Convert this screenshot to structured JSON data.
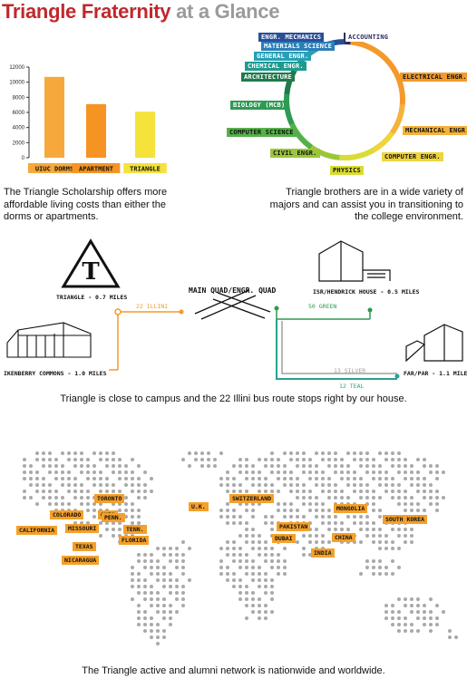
{
  "title": {
    "part1": "Triangle Fraternity",
    "part2": "at a Glance"
  },
  "chart_data": {
    "type": "bar",
    "categories": [
      "UIUC DORMS",
      "APARTMENT",
      "TRIANGLE"
    ],
    "values": [
      10700,
      7100,
      6100
    ],
    "colors": [
      "#f7a83a",
      "#f59422",
      "#f5e23a"
    ],
    "yticks": [
      "0",
      "2000",
      "4000",
      "6000",
      "8000",
      "10000",
      "12000"
    ],
    "ylim": [
      0,
      12000
    ]
  },
  "scholarship_caption": "The Triangle Scholarship offers more affordable living costs than either the dorms or apartments.",
  "majors": {
    "items": [
      {
        "label": "ACCOUNTING",
        "color": "#2b2e63"
      },
      {
        "label": "ELECTRICAL ENGR.",
        "color": "#f39a2a"
      },
      {
        "label": "MECHANICAL ENGR.",
        "color": "#f5b23a"
      },
      {
        "label": "COMPUTER ENGR.",
        "color": "#f0d43a"
      },
      {
        "label": "PHYSICS",
        "color": "#d8dc33"
      },
      {
        "label": "CIVIL ENGR.",
        "color": "#9cc63a"
      },
      {
        "label": "COMPUTER SCIENCE",
        "color": "#55b04a"
      },
      {
        "label": "BIOLOGY (MCB)",
        "color": "#2f9a54"
      },
      {
        "label": "ARCHITECTURE",
        "color": "#1f7a4c"
      },
      {
        "label": "CHEMICAL ENGR.",
        "color": "#1f9a8f"
      },
      {
        "label": "GENERAL ENGR.",
        "color": "#27a0b6"
      },
      {
        "label": "MATERIALS SCIENCE",
        "color": "#2a7fb8"
      },
      {
        "label": "ENGR. MECHANICS",
        "color": "#2a4f9a"
      }
    ],
    "caption": "Triangle brothers are in a wide variety of majors and can assist you in transitioning to the college environment."
  },
  "campus": {
    "triangle_letter": "T",
    "triangle_label": "TRIANGLE - 0.7 MILES",
    "main_quad": "MAIN QUAD/ENGR. QUAD",
    "isr_label": "ISR/HENDRICK HOUSE - 0.5 MILES",
    "ikenberry_label": "IKENBERRY COMMONS - 1.0 MILES",
    "far_label": "FAR/PAR - 1.1 MILES",
    "routes": {
      "illini": "22 ILLINI",
      "green": "50 GREEN",
      "silver": "13 SILVER",
      "teal": "12 TEAL"
    },
    "colors": {
      "illini": "#f39a2a",
      "green": "#2e9a4e",
      "silver": "#a0a0a0",
      "teal": "#2aa08f"
    },
    "caption": "Triangle is close to campus and the 22 Illini bus route stops right by our house."
  },
  "map": {
    "places": [
      "TORONTO",
      "COLORADO",
      "OHIO",
      "PENN.",
      "MISSOURI",
      "TENN.",
      "CALIFORNIA",
      "FLORIDA",
      "TEXAS",
      "NICARAGUA",
      "U.K.",
      "SWITZERLAND",
      "PAKISTAN",
      "DUBAI",
      "INDIA",
      "MONGOLIA",
      "SOUTH KOREA",
      "CHINA"
    ],
    "caption": "The Triangle active and alumni network is nationwide and worldwide."
  }
}
